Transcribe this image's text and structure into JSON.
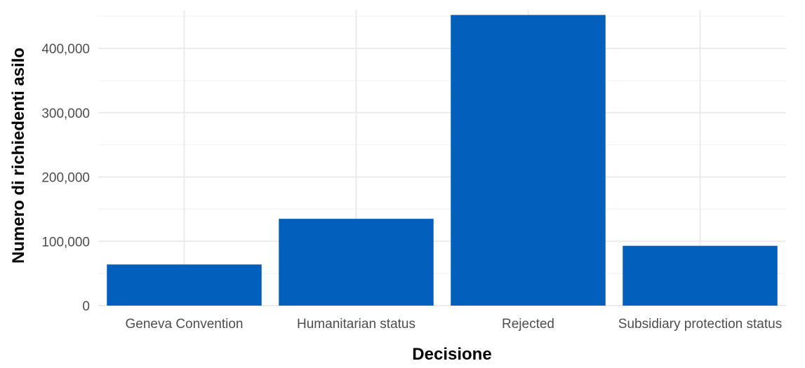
{
  "chart_data": {
    "type": "bar",
    "categories": [
      "Geneva Convention",
      "Humanitarian status",
      "Rejected",
      "Subsidiary protection status"
    ],
    "values": [
      64000,
      135000,
      452000,
      93000
    ],
    "xlabel": "Decisione",
    "ylabel": "Numero di richiedenti asilo",
    "ylim": [
      0,
      460000
    ],
    "yticks": [
      0,
      100000,
      200000,
      300000,
      400000
    ],
    "ytick_labels": [
      "0",
      "100,000",
      "200,000",
      "300,000",
      "400,000"
    ],
    "grid": true,
    "legend": "none",
    "bar_color": "#035fbc"
  }
}
